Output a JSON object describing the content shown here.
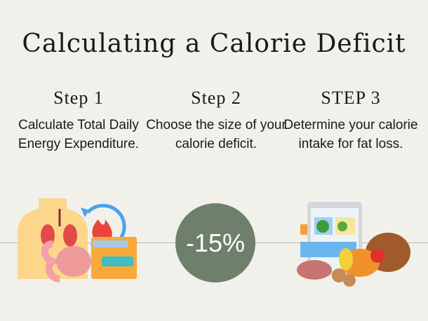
{
  "title": "Calculating a Calorie Deficit",
  "steps": [
    {
      "heading": "Step 1",
      "text": "Calculate Total Daily Energy Expenditure.",
      "icon": "body-metabolism-icon"
    },
    {
      "heading": "Step 2",
      "text": "Choose the size of your calorie deficit.",
      "badge": "-15%"
    },
    {
      "heading": "STEP 3",
      "text": "Determine your calorie intake for fat loss.",
      "icon": "meal-planning-food-icon"
    }
  ],
  "colors": {
    "background": "#f2f0eb",
    "circle": "#6e7f6b",
    "divider": "#bdbab4"
  }
}
